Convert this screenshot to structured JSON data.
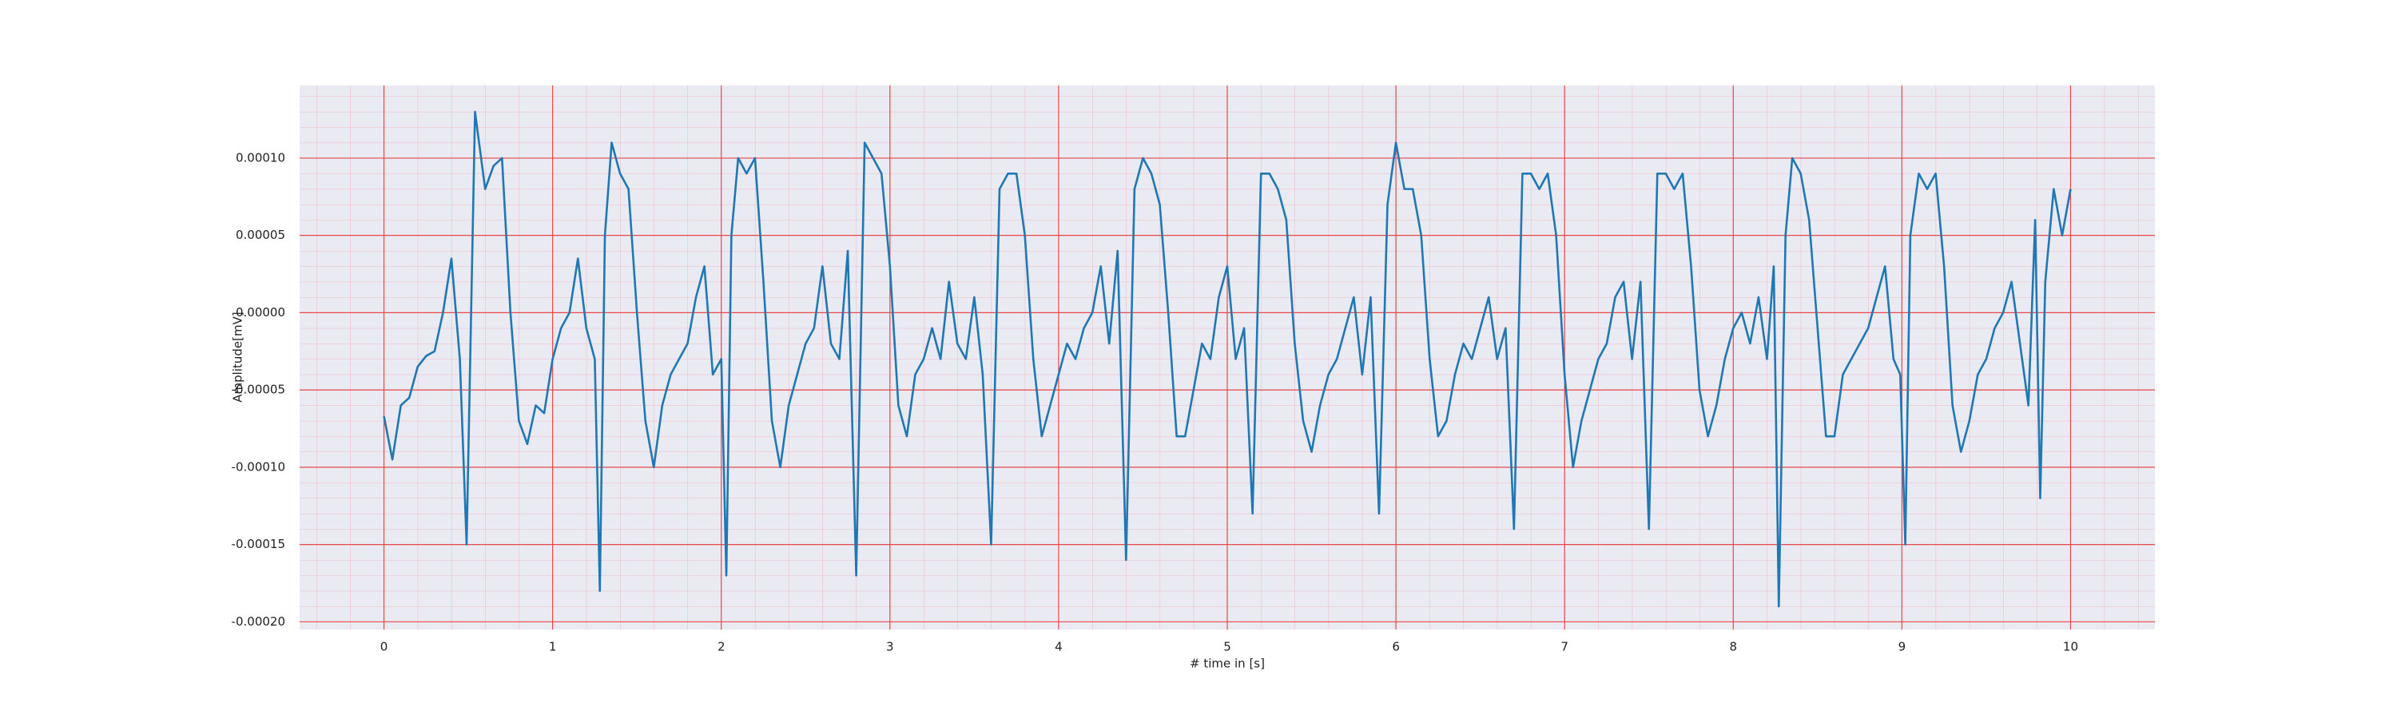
{
  "chart_data": {
    "type": "line",
    "xlabel": "# time in [s]",
    "ylabel": "Amplitude[mV]",
    "color": "#1f77b4",
    "grid": true,
    "minor_grid": true,
    "xlim": [
      -0.5,
      10.5
    ],
    "xticks": [
      0,
      1,
      2,
      3,
      4,
      5,
      6,
      7,
      8,
      9,
      10
    ],
    "ylim": [
      -0.000205,
      0.000147
    ],
    "yticks": [
      {
        "value": -0.0002,
        "label": "-0.00020"
      },
      {
        "value": -0.00015,
        "label": "-0.00015"
      },
      {
        "value": -0.0001,
        "label": "-0.00010"
      },
      {
        "value": -5e-05,
        "label": "-0.00005"
      },
      {
        "value": 0,
        "label": "0.00000"
      },
      {
        "value": 5e-05,
        "label": "0.00005"
      },
      {
        "value": 0.0001,
        "label": "0.00010"
      }
    ],
    "x": [
      0,
      0.05,
      0.1,
      0.15,
      0.2,
      0.25,
      0.3,
      0.35,
      0.4,
      0.45,
      0.49,
      0.54,
      0.6,
      0.65,
      0.7,
      0.75,
      0.8,
      0.85,
      0.9,
      0.95,
      1,
      1.05,
      1.1,
      1.15,
      1.2,
      1.25,
      1.28,
      1.31,
      1.35,
      1.4,
      1.45,
      1.5,
      1.55,
      1.6,
      1.65,
      1.7,
      1.75,
      1.8,
      1.85,
      1.9,
      1.95,
      2,
      2.03,
      2.06,
      2.1,
      2.15,
      2.2,
      2.25,
      2.3,
      2.35,
      2.4,
      2.45,
      2.5,
      2.55,
      2.6,
      2.65,
      2.7,
      2.75,
      2.8,
      2.85,
      2.9,
      2.95,
      3,
      3.05,
      3.1,
      3.15,
      3.2,
      3.25,
      3.3,
      3.35,
      3.4,
      3.45,
      3.5,
      3.55,
      3.6,
      3.65,
      3.7,
      3.75,
      3.8,
      3.85,
      3.9,
      3.95,
      4,
      4.05,
      4.1,
      4.15,
      4.2,
      4.25,
      4.3,
      4.35,
      4.4,
      4.45,
      4.5,
      4.55,
      4.6,
      4.65,
      4.7,
      4.75,
      4.8,
      4.85,
      4.9,
      4.95,
      5,
      5.05,
      5.1,
      5.15,
      5.2,
      5.25,
      5.3,
      5.35,
      5.4,
      5.45,
      5.5,
      5.55,
      5.6,
      5.65,
      5.7,
      5.75,
      5.8,
      5.85,
      5.9,
      5.95,
      6,
      6.05,
      6.1,
      6.15,
      6.2,
      6.25,
      6.3,
      6.35,
      6.4,
      6.45,
      6.5,
      6.55,
      6.6,
      6.65,
      6.7,
      6.75,
      6.8,
      6.85,
      6.9,
      6.95,
      7,
      7.05,
      7.1,
      7.15,
      7.2,
      7.25,
      7.3,
      7.35,
      7.4,
      7.45,
      7.5,
      7.55,
      7.6,
      7.65,
      7.7,
      7.75,
      7.8,
      7.85,
      7.9,
      7.95,
      8,
      8.05,
      8.1,
      8.15,
      8.2,
      8.24,
      8.27,
      8.31,
      8.35,
      8.4,
      8.45,
      8.5,
      8.55,
      8.6,
      8.65,
      8.7,
      8.75,
      8.8,
      8.85,
      8.9,
      8.95,
      8.99,
      9.02,
      9.05,
      9.1,
      9.15,
      9.2,
      9.25,
      9.3,
      9.35,
      9.4,
      9.45,
      9.5,
      9.55,
      9.6,
      9.65,
      9.7,
      9.75,
      9.79,
      9.82,
      9.85,
      9.9,
      9.95,
      10
    ],
    "values": [
      -6.7e-05,
      -9.5e-05,
      -6e-05,
      -5.5e-05,
      -3.5e-05,
      -2.8e-05,
      -2.5e-05,
      0,
      3.5e-05,
      -3e-05,
      -0.00015,
      0.00013,
      8e-05,
      9.5e-05,
      0.0001,
      0,
      -7e-05,
      -8.5e-05,
      -6e-05,
      -6.5e-05,
      -3e-05,
      -1e-05,
      0,
      3.5e-05,
      -1e-05,
      -3e-05,
      -0.00018,
      5e-05,
      0.00011,
      9e-05,
      8e-05,
      0,
      -7e-05,
      -0.0001,
      -6e-05,
      -4e-05,
      -3e-05,
      -2e-05,
      1e-05,
      3e-05,
      -4e-05,
      -3e-05,
      -0.00017,
      5e-05,
      0.0001,
      9e-05,
      0.0001,
      2e-05,
      -7e-05,
      -0.0001,
      -6e-05,
      -4e-05,
      -2e-05,
      -1e-05,
      3e-05,
      -2e-05,
      -3e-05,
      4e-05,
      -0.00017,
      0.00011,
      0.0001,
      9e-05,
      3e-05,
      -6e-05,
      -8e-05,
      -4e-05,
      -3e-05,
      -1e-05,
      -3e-05,
      2e-05,
      -2e-05,
      -3e-05,
      1e-05,
      -4e-05,
      -0.00015,
      8e-05,
      9e-05,
      9e-05,
      5e-05,
      -3e-05,
      -8e-05,
      -6e-05,
      -4e-05,
      -2e-05,
      -3e-05,
      -1e-05,
      0,
      3e-05,
      -2e-05,
      4e-05,
      -0.00016,
      8e-05,
      0.0001,
      9e-05,
      7e-05,
      0,
      -8e-05,
      -8e-05,
      -5e-05,
      -2e-05,
      -3e-05,
      1e-05,
      3e-05,
      -3e-05,
      -1e-05,
      -0.00013,
      9e-05,
      9e-05,
      8e-05,
      6e-05,
      -2e-05,
      -7e-05,
      -9e-05,
      -6e-05,
      -4e-05,
      -3e-05,
      -1e-05,
      1e-05,
      -4e-05,
      1e-05,
      -0.00013,
      7e-05,
      0.00011,
      8e-05,
      8e-05,
      5e-05,
      -3e-05,
      -8e-05,
      -7e-05,
      -4e-05,
      -2e-05,
      -3e-05,
      -1e-05,
      1e-05,
      -3e-05,
      -1e-05,
      -0.00014,
      9e-05,
      9e-05,
      8e-05,
      9e-05,
      5e-05,
      -4e-05,
      -0.0001,
      -7e-05,
      -5e-05,
      -3e-05,
      -2e-05,
      1e-05,
      2e-05,
      -3e-05,
      2e-05,
      -0.00014,
      9e-05,
      9e-05,
      8e-05,
      9e-05,
      3e-05,
      -5e-05,
      -8e-05,
      -6e-05,
      -3e-05,
      -1e-05,
      0,
      -2e-05,
      1e-05,
      -3e-05,
      3e-05,
      -0.00019,
      5e-05,
      0.0001,
      9e-05,
      6e-05,
      -1e-05,
      -8e-05,
      -8e-05,
      -4e-05,
      -3e-05,
      -2e-05,
      -1e-05,
      1e-05,
      3e-05,
      -3e-05,
      -4e-05,
      -0.00015,
      5e-05,
      9e-05,
      8e-05,
      9e-05,
      3e-05,
      -6e-05,
      -9e-05,
      -7e-05,
      -4e-05,
      -3e-05,
      -1e-05,
      0,
      2e-05,
      -2e-05,
      -6e-05,
      6e-05,
      -0.00012,
      2e-05,
      8e-05,
      5e-05,
      8e-05
    ]
  }
}
